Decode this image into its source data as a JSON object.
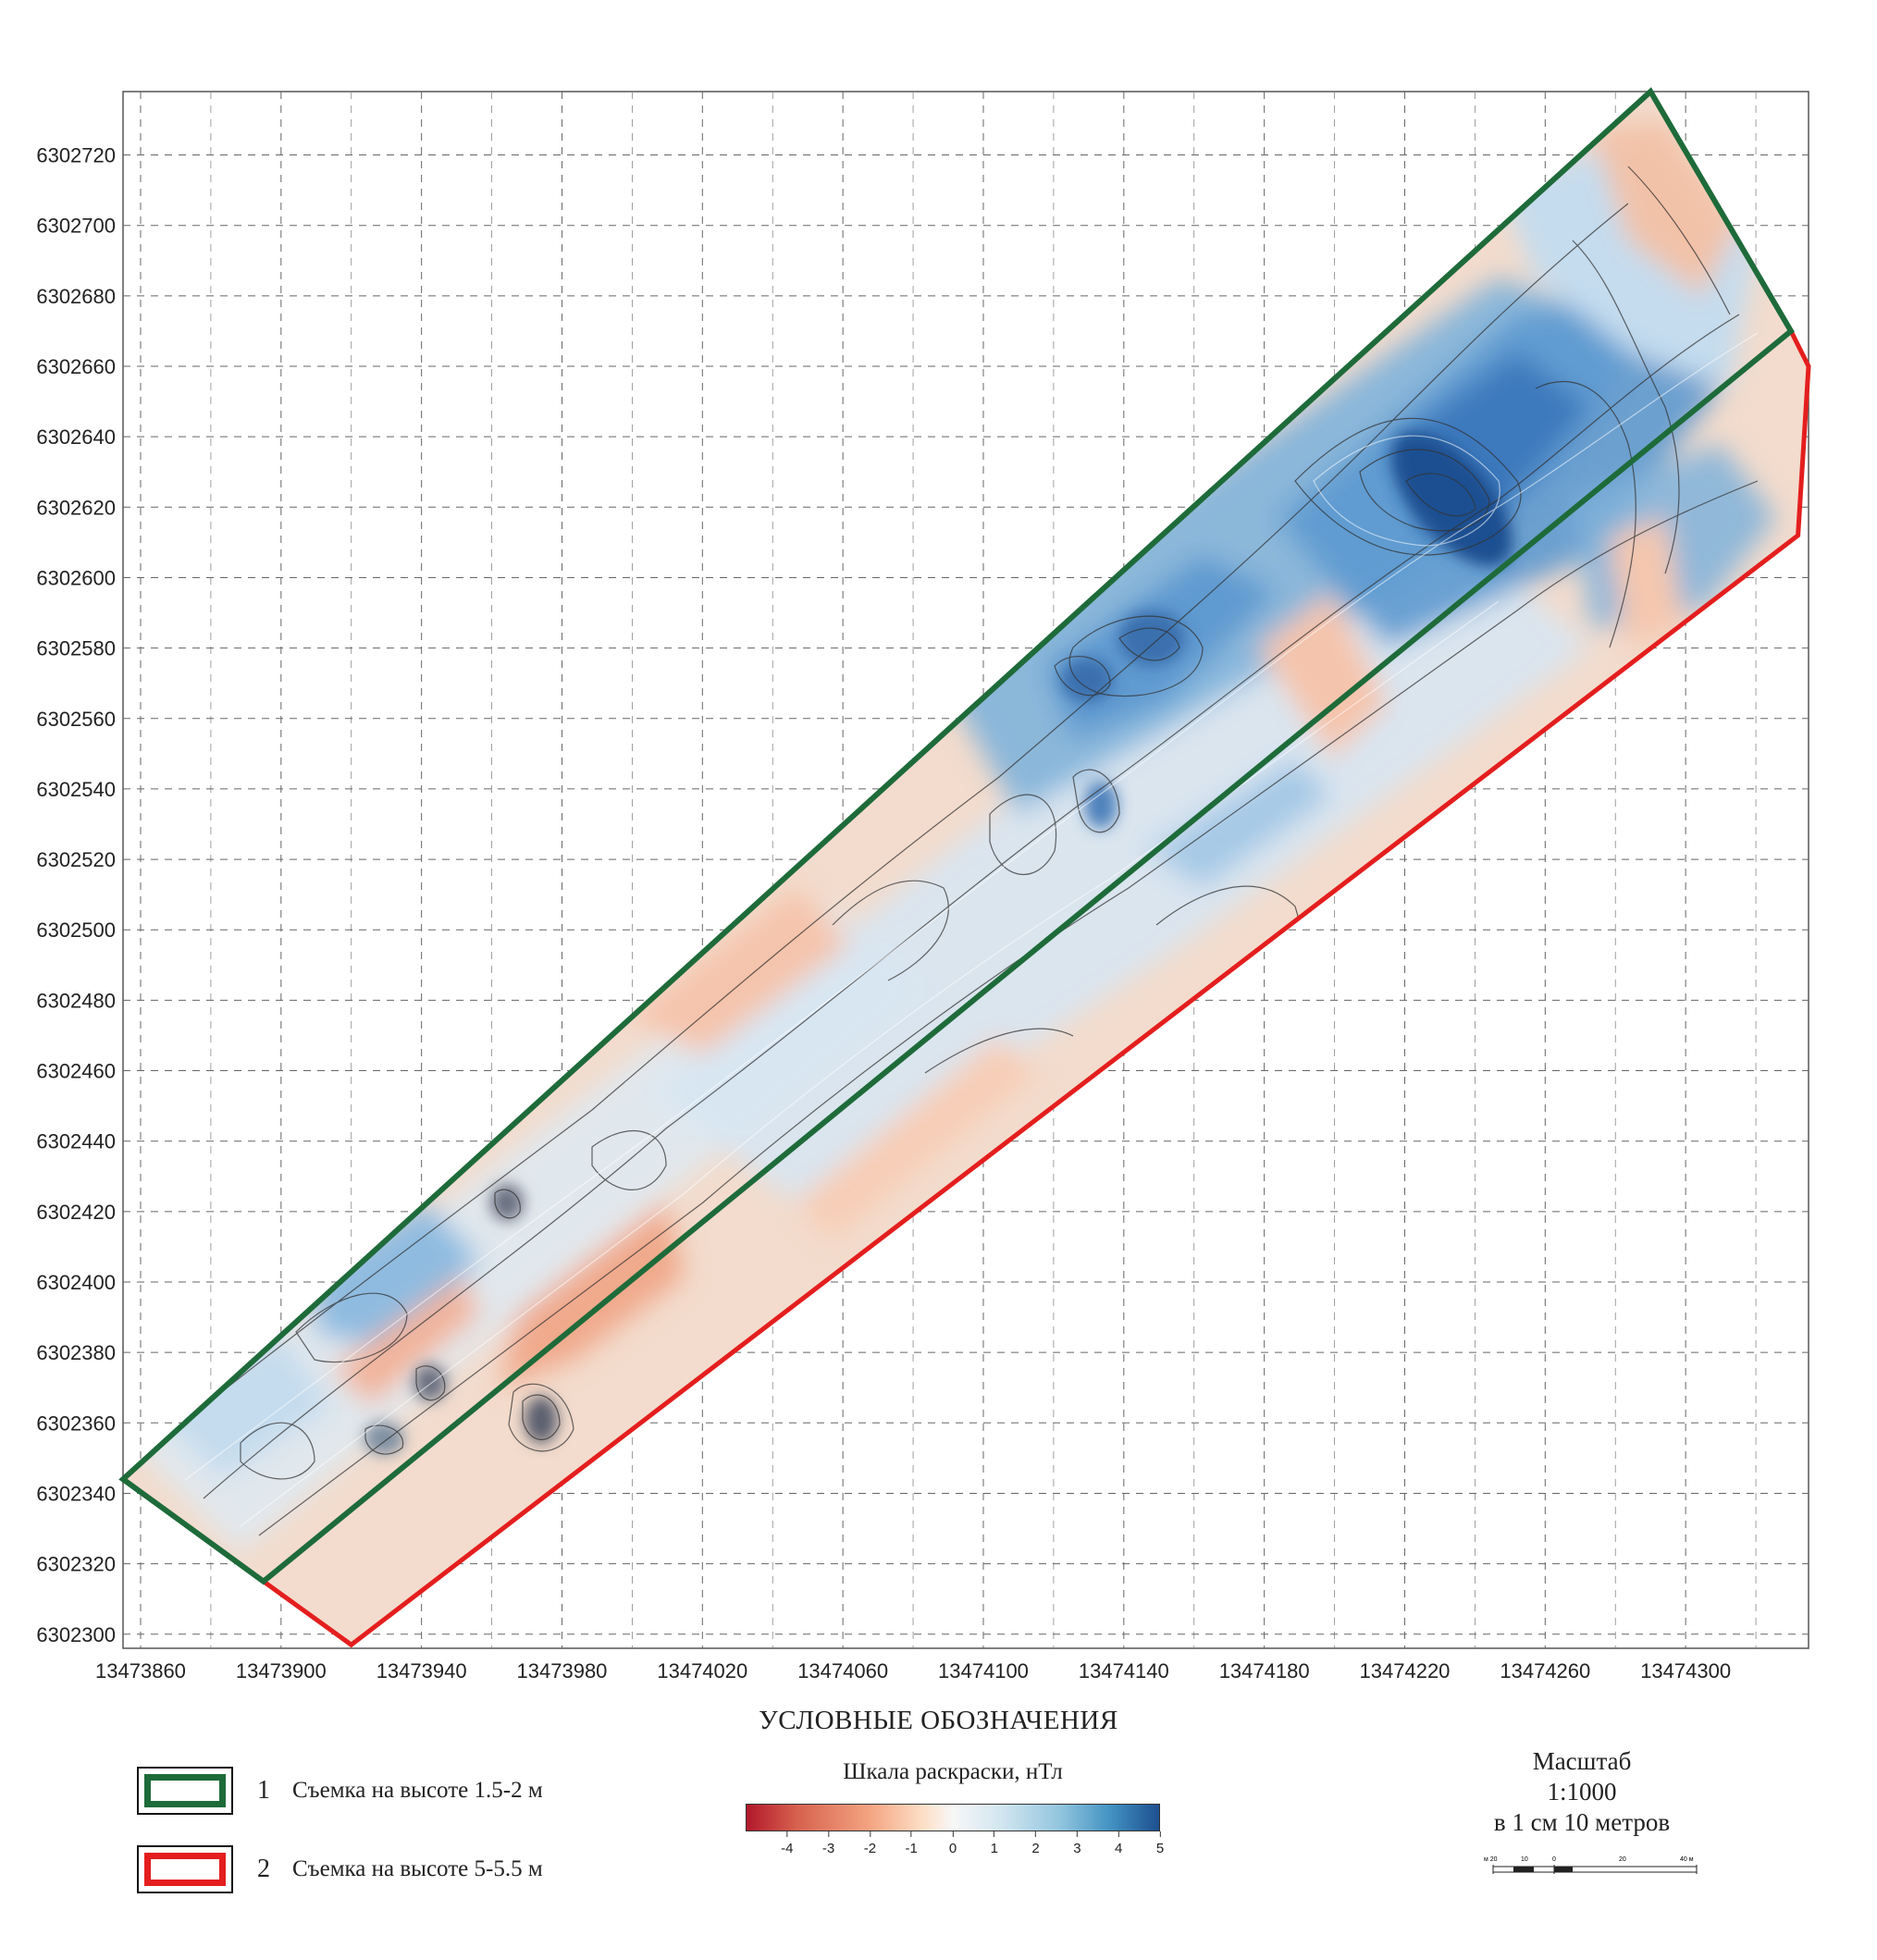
{
  "map": {
    "x_ticks": [
      "13473860",
      "13473900",
      "13473940",
      "13473980",
      "13474020",
      "13474060",
      "13474100",
      "13474140",
      "13474180",
      "13474220",
      "13474260",
      "13474300"
    ],
    "y_ticks": [
      "6302720",
      "6302700",
      "6302680",
      "6302660",
      "6302640",
      "6302620",
      "6302600",
      "6302580",
      "6302560",
      "6302540",
      "6302520",
      "6302500",
      "6302480",
      "6302460",
      "6302440",
      "6302420",
      "6302400",
      "6302380",
      "6302360",
      "6302340",
      "6302320",
      "6302300"
    ],
    "x_range": [
      13473855,
      13474335
    ],
    "y_range": [
      6302296,
      6302738
    ],
    "grid": "dashed",
    "contour_values": [
      "-4",
      "-3",
      "-2",
      "-1",
      "0",
      "1",
      "2",
      "3",
      "4",
      "5"
    ],
    "polygon_green": [
      [
        13473855,
        6302344
      ],
      [
        13474290,
        6302738
      ],
      [
        13474330,
        6302670
      ],
      [
        13473895,
        6302315
      ]
    ],
    "polygon_red": [
      [
        13473895,
        6302315
      ],
      [
        13474330,
        6302670
      ],
      [
        13474335,
        6302660
      ],
      [
        13474332,
        6302612
      ],
      [
        13473920,
        6302297
      ]
    ]
  },
  "legend": {
    "title": "УСЛОВНЫЕ ОБОЗНАЧЕНИЯ",
    "items": [
      {
        "num": "1",
        "text": "Съемка на высоте 1.5-2 м",
        "color": "#1e6b3a"
      },
      {
        "num": "2",
        "text": "Съемка на высоте 5-5.5 м",
        "color": "#e41e1e"
      }
    ]
  },
  "colorbar": {
    "title": "Шкала раскраски, нТл",
    "ticks": [
      "-4",
      "-3",
      "-2",
      "-1",
      "0",
      "1",
      "2",
      "3",
      "4",
      "5"
    ],
    "min": -5,
    "max": 5,
    "colors": [
      "#b2182b",
      "#f4a582",
      "#f7f7f7",
      "#92c5de",
      "#1d4f8f"
    ]
  },
  "scale": {
    "label": "Масштаб",
    "ratio": "1:1000",
    "note": "в 1 см 10 метров",
    "bar_ticks": [
      "м 20",
      "10",
      "0",
      "20",
      "40 м"
    ]
  }
}
